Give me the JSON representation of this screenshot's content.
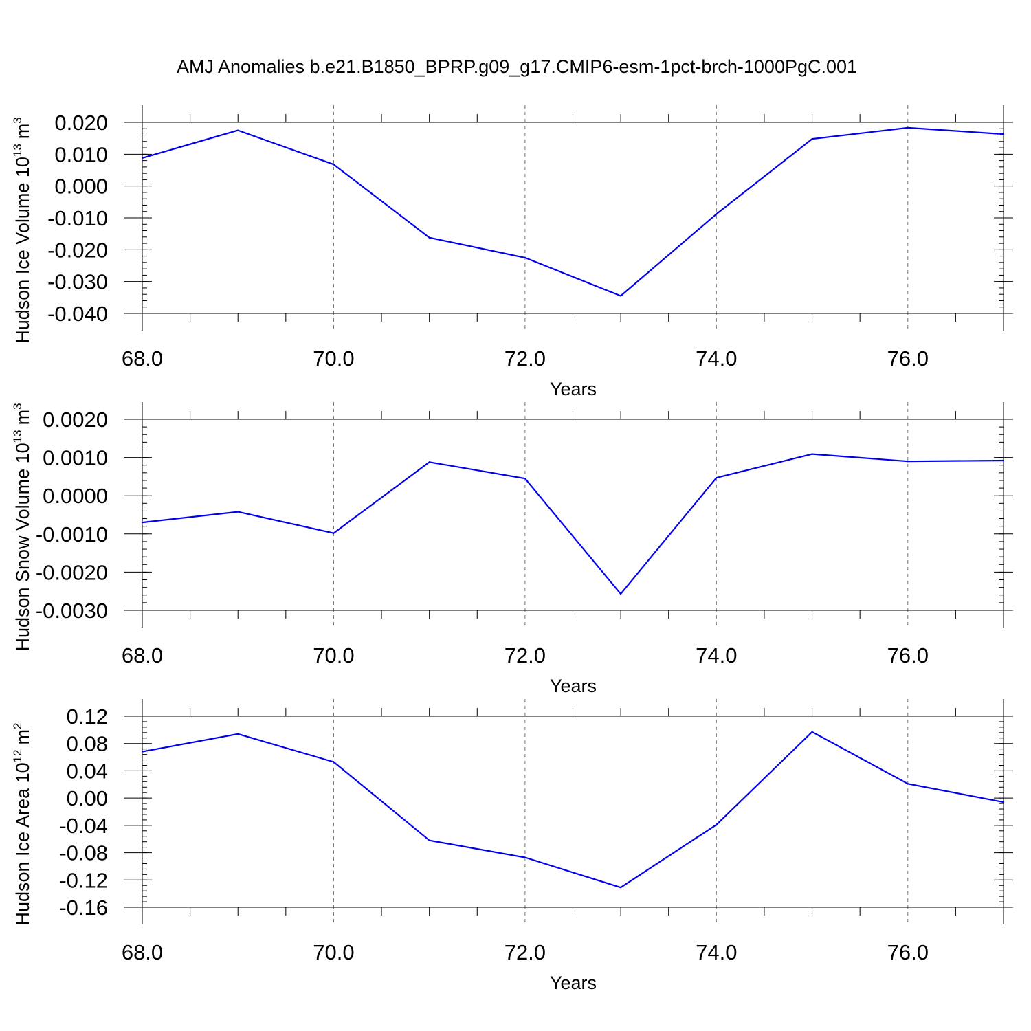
{
  "title": "AMJ Anomalies b.e21.B1850_BPRP.g09_g17.CMIP6-esm-1pct-brch-1000PgC.001",
  "colors": {
    "series": "#0000ee",
    "grid": "#777777",
    "axes": "#000000"
  },
  "chart_data": [
    {
      "type": "line",
      "ylabel_main": "Hudson Ice Volume 10",
      "ylabel_sup": "13",
      "ylabel_unit": "m",
      "ylabel_unit_sup": "3",
      "xlabel": "Years",
      "xlim": [
        68,
        77
      ],
      "ylim": [
        -0.04,
        0.02
      ],
      "x_ticks": [
        68,
        70,
        72,
        74,
        76
      ],
      "x_tick_labels": [
        "68.0",
        "70.0",
        "72.0",
        "74.0",
        "76.0"
      ],
      "y_ticks": [
        0.02,
        0.01,
        0.0,
        -0.01,
        -0.02,
        -0.03,
        -0.04
      ],
      "y_tick_labels": [
        "0.020",
        "0.010",
        "0.000",
        "-0.010",
        "-0.020",
        "-0.030",
        "-0.040"
      ],
      "grid": "vertical dashed",
      "x": [
        68,
        69,
        70,
        71,
        72,
        73,
        74,
        75,
        76,
        77
      ],
      "y": [
        0.0088,
        0.0175,
        0.0068,
        -0.0162,
        -0.0225,
        -0.0345,
        -0.0088,
        0.0148,
        0.0183,
        0.0163
      ]
    },
    {
      "type": "line",
      "ylabel_main": "Hudson Snow Volume 10",
      "ylabel_sup": "13",
      "ylabel_unit": "m",
      "ylabel_unit_sup": "3",
      "xlabel": "Years",
      "xlim": [
        68,
        77
      ],
      "ylim": [
        -0.003,
        0.002
      ],
      "x_ticks": [
        68,
        70,
        72,
        74,
        76
      ],
      "x_tick_labels": [
        "68.0",
        "70.0",
        "72.0",
        "74.0",
        "76.0"
      ],
      "y_ticks": [
        0.002,
        0.001,
        0.0,
        -0.001,
        -0.002,
        -0.003
      ],
      "y_tick_labels": [
        "0.0020",
        "0.0010",
        "0.0000",
        "-0.0010",
        "-0.0020",
        "-0.0030"
      ],
      "grid": "vertical dashed",
      "x": [
        68,
        69,
        70,
        71,
        72,
        73,
        74,
        75,
        76,
        77
      ],
      "y": [
        -0.0007,
        -0.00042,
        -0.00098,
        0.00088,
        0.00045,
        -0.00257,
        0.00047,
        0.00109,
        0.0009,
        0.00092
      ]
    },
    {
      "type": "line",
      "ylabel_main": "Hudson Ice Area 10",
      "ylabel_sup": "12",
      "ylabel_unit": "m",
      "ylabel_unit_sup": "2",
      "xlabel": "Years",
      "xlim": [
        68,
        77
      ],
      "ylim": [
        -0.16,
        0.12
      ],
      "x_ticks": [
        68,
        70,
        72,
        74,
        76
      ],
      "x_tick_labels": [
        "68.0",
        "70.0",
        "72.0",
        "74.0",
        "76.0"
      ],
      "y_ticks": [
        0.12,
        0.08,
        0.04,
        0.0,
        -0.04,
        -0.08,
        -0.12,
        -0.16
      ],
      "y_tick_labels": [
        "0.12",
        "0.08",
        "0.04",
        "0.00",
        "-0.04",
        "-0.08",
        "-0.12",
        "-0.16"
      ],
      "grid": "vertical dashed",
      "x": [
        68,
        69,
        70,
        71,
        72,
        73,
        74,
        75,
        76,
        77
      ],
      "y": [
        0.068,
        0.094,
        0.053,
        -0.062,
        -0.087,
        -0.131,
        -0.039,
        0.097,
        0.021,
        -0.006
      ]
    }
  ]
}
